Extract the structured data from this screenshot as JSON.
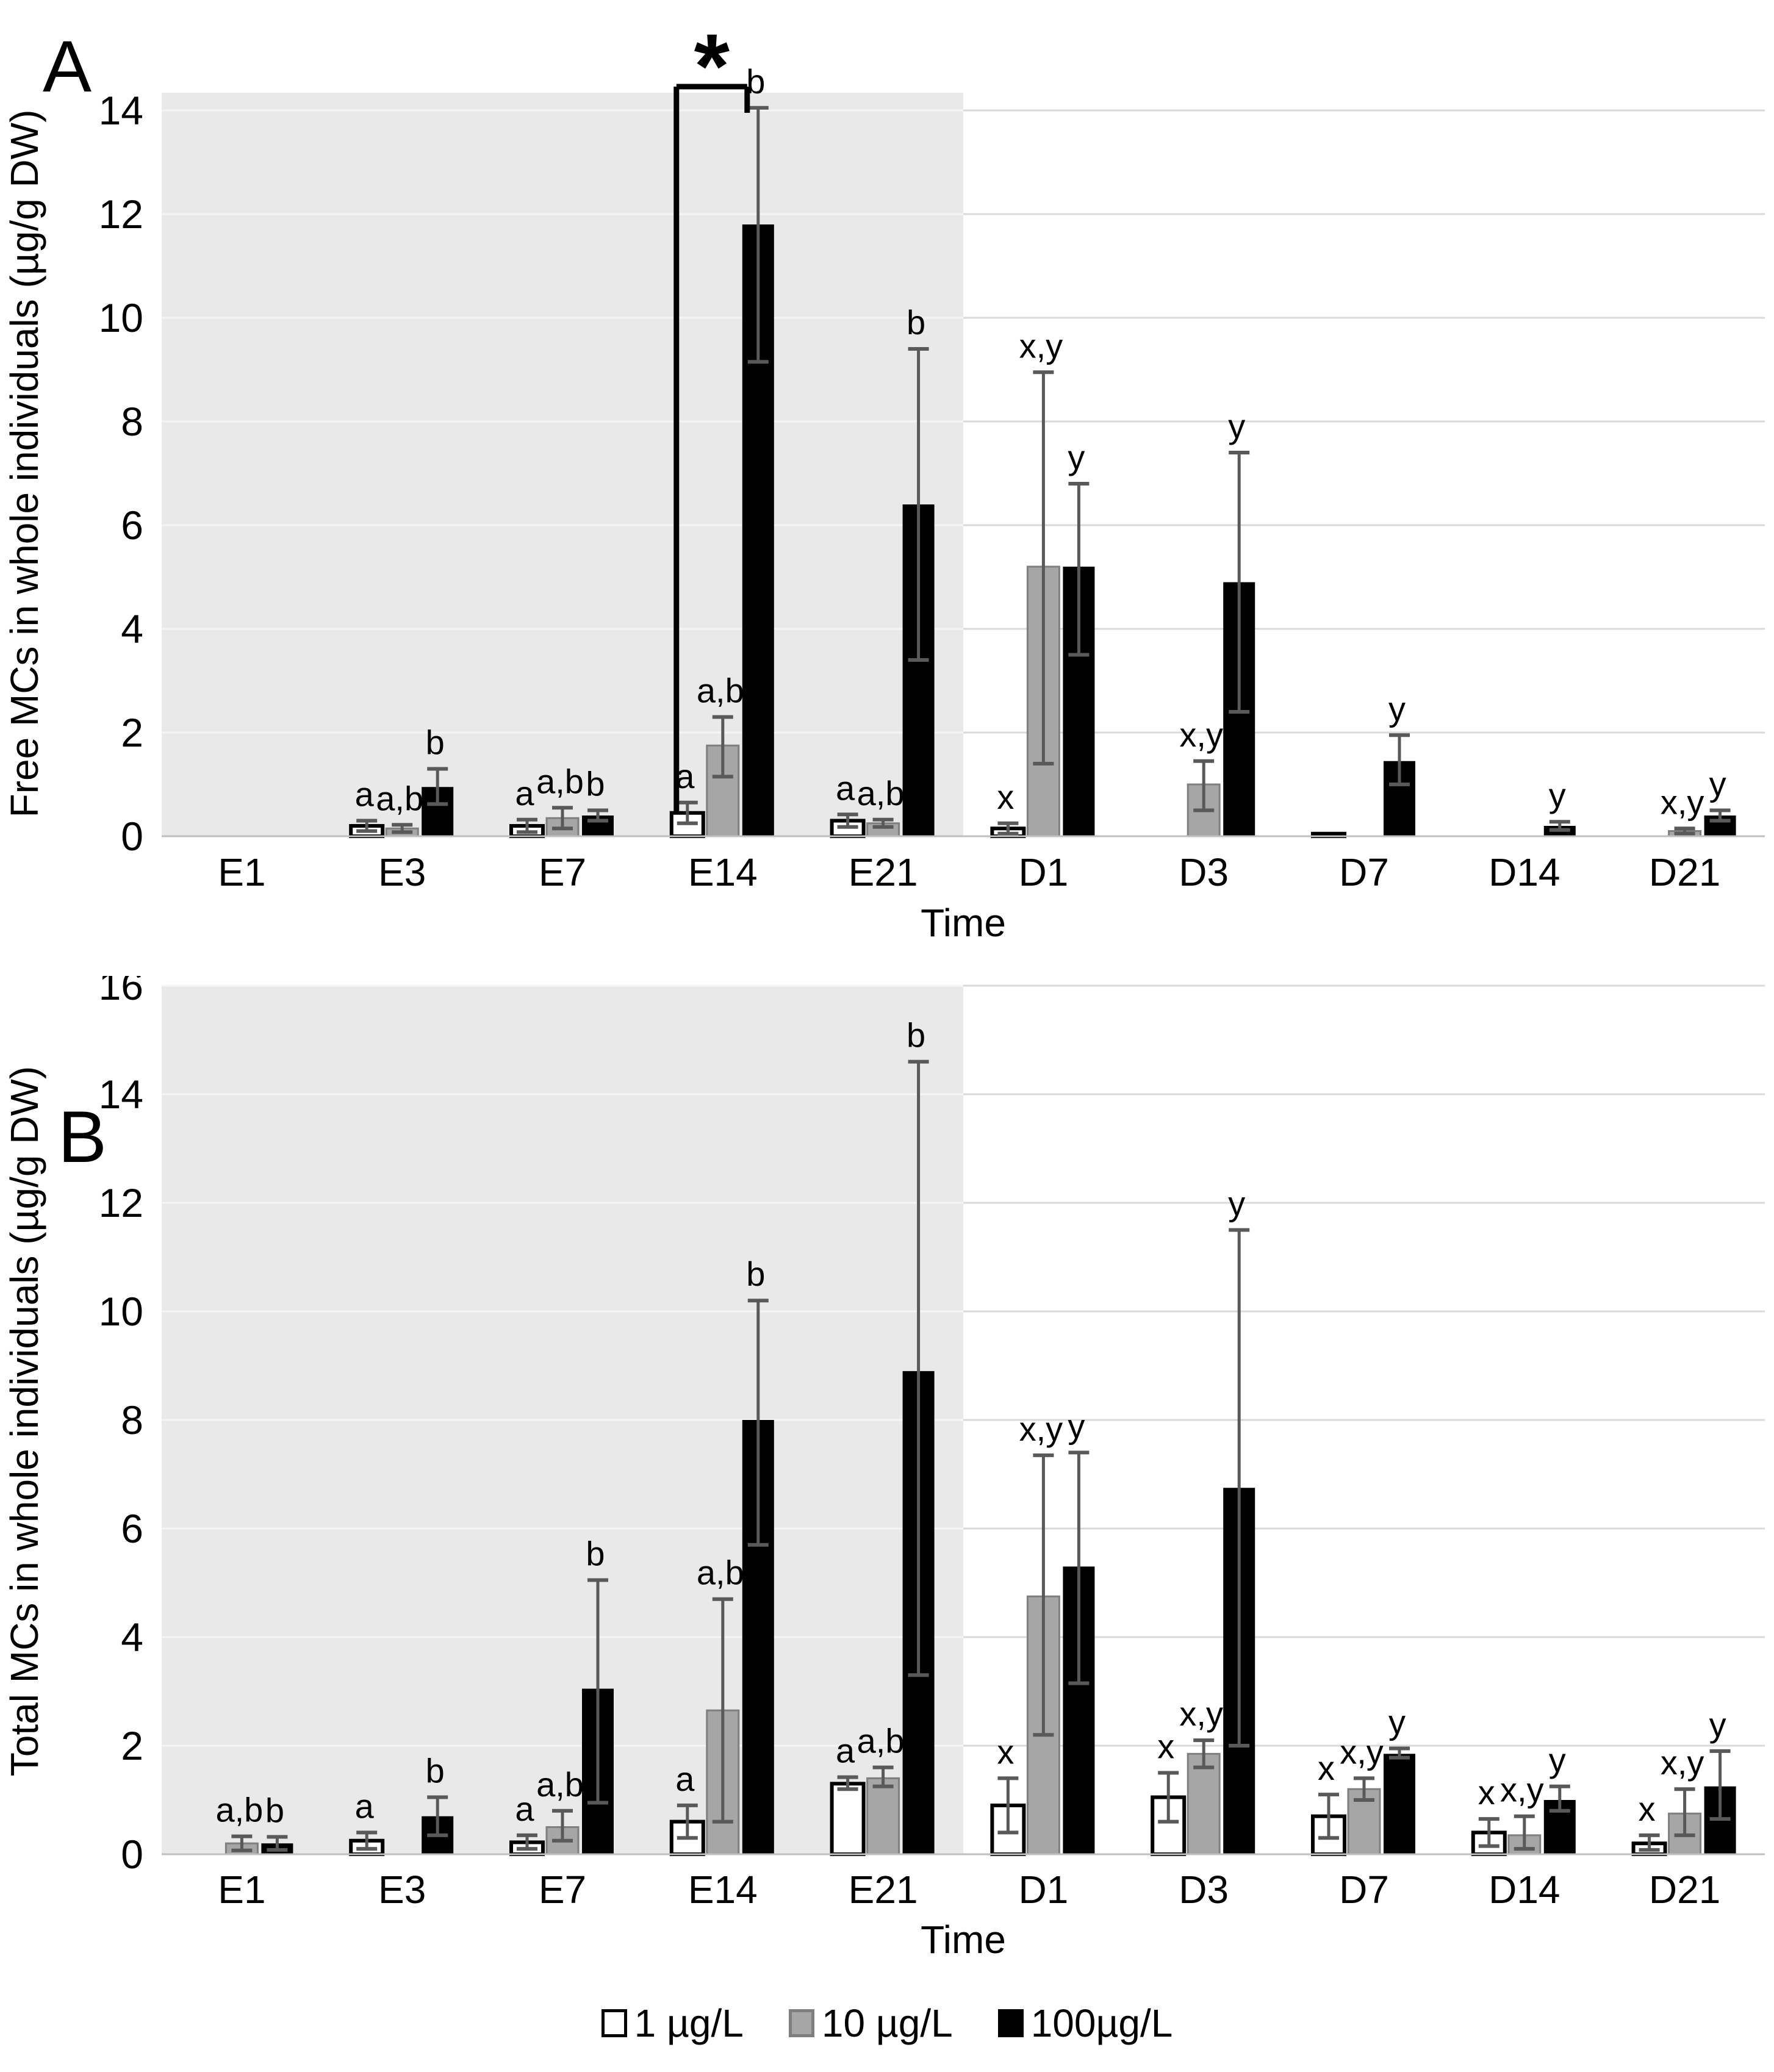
{
  "figure": {
    "panels": [
      "A",
      "B"
    ],
    "background_shade_color": "#e9e9e9",
    "gridline_color_on_white": "#d9d9d9",
    "gridline_color_on_shade": "#f5f5f5",
    "axis_line_color": "#bfbfbf",
    "error_bar_color": "#595959"
  },
  "legend": {
    "items": [
      {
        "label": "1 µg/L",
        "fill": "#ffffff",
        "border": "#000000"
      },
      {
        "label": "10 µg/L",
        "fill": "#a6a6a6",
        "border": "#7f7f7f"
      },
      {
        "label": "100µg/L",
        "fill": "#000000",
        "border": "#000000"
      }
    ]
  },
  "chart_data": [
    {
      "type": "bar",
      "panel_label": "A",
      "title": "",
      "ylabel": "Free MCs in whole individuals  (µg/g DW)",
      "xlabel": "Time",
      "ylim": [
        0,
        14.5
      ],
      "yticks": [
        0,
        2,
        4,
        6,
        8,
        10,
        12,
        14
      ],
      "grid": true,
      "legend_position": "bottom",
      "categories": [
        "E1",
        "E3",
        "E7",
        "E14",
        "E21",
        "D1",
        "D3",
        "D7",
        "D14",
        "D21"
      ],
      "shaded_region": {
        "from": "E1",
        "to": "E21"
      },
      "annotation": {
        "type": "significance-bracket",
        "category": "E14",
        "from_series": "1 µg/L",
        "to_series": "100µg/L",
        "symbol": "*"
      },
      "series": [
        {
          "name": "1 µg/L",
          "fill": "#ffffff",
          "stroke": "#000000",
          "values": [
            0,
            0.2,
            0.2,
            0.45,
            0.3,
            0.15,
            0,
            0.05,
            0,
            0
          ],
          "errors_low": [
            null,
            0.1,
            0.08,
            0.25,
            0.18,
            0.05,
            null,
            null,
            null,
            null
          ],
          "errors_high": [
            null,
            0.3,
            0.32,
            0.65,
            0.42,
            0.25,
            null,
            null,
            null,
            null
          ],
          "letters": [
            null,
            "a",
            "a",
            "a",
            "a",
            "x",
            null,
            null,
            null,
            null
          ]
        },
        {
          "name": "10 µg/L",
          "fill": "#a6a6a6",
          "stroke": "#7f7f7f",
          "values": [
            0,
            0.15,
            0.35,
            1.75,
            0.25,
            5.2,
            1.0,
            0,
            0,
            0.1
          ],
          "errors_low": [
            null,
            0.08,
            0.15,
            1.15,
            0.18,
            1.4,
            0.5,
            null,
            null,
            0.05
          ],
          "errors_high": [
            null,
            0.22,
            0.55,
            2.3,
            0.32,
            8.95,
            1.45,
            null,
            null,
            0.15
          ],
          "letters": [
            null,
            "a,b",
            "a,b",
            "a,b",
            "a,b",
            "x,y",
            "x,y",
            null,
            null,
            "x,y"
          ]
        },
        {
          "name": "100 µg/L",
          "fill": "#000000",
          "stroke": "#000000",
          "values": [
            0,
            0.95,
            0.4,
            11.8,
            6.4,
            5.2,
            4.9,
            1.45,
            0.2,
            0.4
          ],
          "errors_low": [
            null,
            0.62,
            0.3,
            9.15,
            3.4,
            3.5,
            2.4,
            1.0,
            0.12,
            0.3
          ],
          "errors_high": [
            null,
            1.3,
            0.5,
            14.05,
            9.4,
            6.8,
            7.4,
            1.95,
            0.28,
            0.5
          ],
          "letters": [
            null,
            "b",
            "b",
            "b",
            "b",
            "y",
            "y",
            "y",
            "y",
            "y"
          ]
        }
      ]
    },
    {
      "type": "bar",
      "panel_label": "B",
      "title": "",
      "ylabel": "Total MCs in whole individuals  (µg/g DW)",
      "xlabel": "Time",
      "ylim": [
        0,
        16
      ],
      "yticks": [
        0,
        2,
        4,
        6,
        8,
        10,
        12,
        14,
        16
      ],
      "grid": true,
      "legend_position": "bottom",
      "categories": [
        "E1",
        "E3",
        "E7",
        "E14",
        "E21",
        "D1",
        "D3",
        "D7",
        "D14",
        "D21"
      ],
      "shaded_region": {
        "from": "E1",
        "to": "E21"
      },
      "annotation": null,
      "series": [
        {
          "name": "1 µg/L",
          "fill": "#ffffff",
          "stroke": "#000000",
          "values": [
            0,
            0.25,
            0.22,
            0.6,
            1.3,
            0.9,
            1.05,
            0.7,
            0.4,
            0.2
          ],
          "errors_low": [
            null,
            0.1,
            0.1,
            0.3,
            1.2,
            0.4,
            0.6,
            0.3,
            0.15,
            0.08
          ],
          "errors_high": [
            null,
            0.4,
            0.35,
            0.9,
            1.42,
            1.4,
            1.5,
            1.1,
            0.65,
            0.35
          ],
          "letters": [
            null,
            "a",
            "a",
            "a",
            "a",
            "x",
            "x",
            "x",
            "x",
            "x"
          ]
        },
        {
          "name": "10 µg/L",
          "fill": "#a6a6a6",
          "stroke": "#7f7f7f",
          "values": [
            0.2,
            0,
            0.5,
            2.65,
            1.4,
            4.75,
            1.85,
            1.2,
            0.35,
            0.75
          ],
          "errors_low": [
            0.07,
            null,
            0.25,
            0.6,
            1.25,
            2.2,
            1.6,
            1.0,
            0.1,
            0.35
          ],
          "errors_high": [
            0.33,
            null,
            0.8,
            4.7,
            1.6,
            7.35,
            2.1,
            1.4,
            0.7,
            1.2
          ],
          "letters": [
            "a,b",
            null,
            "a,b",
            "a,b",
            "a,b",
            "x,y",
            "x,y",
            "x,y",
            "x,y",
            "x,y"
          ]
        },
        {
          "name": "100 µg/L",
          "fill": "#000000",
          "stroke": "#000000",
          "values": [
            0.2,
            0.7,
            3.05,
            8.0,
            8.9,
            5.3,
            6.75,
            1.85,
            1.0,
            1.25
          ],
          "errors_low": [
            0.08,
            0.35,
            0.95,
            5.7,
            3.3,
            3.15,
            2.0,
            1.78,
            0.8,
            0.65
          ],
          "errors_high": [
            0.32,
            1.05,
            5.05,
            10.2,
            14.6,
            7.4,
            11.5,
            1.95,
            1.25,
            1.9
          ],
          "letters": [
            "b",
            "b",
            "b",
            "b",
            "b",
            "y",
            "y",
            "y",
            "y",
            "y"
          ]
        }
      ]
    }
  ]
}
